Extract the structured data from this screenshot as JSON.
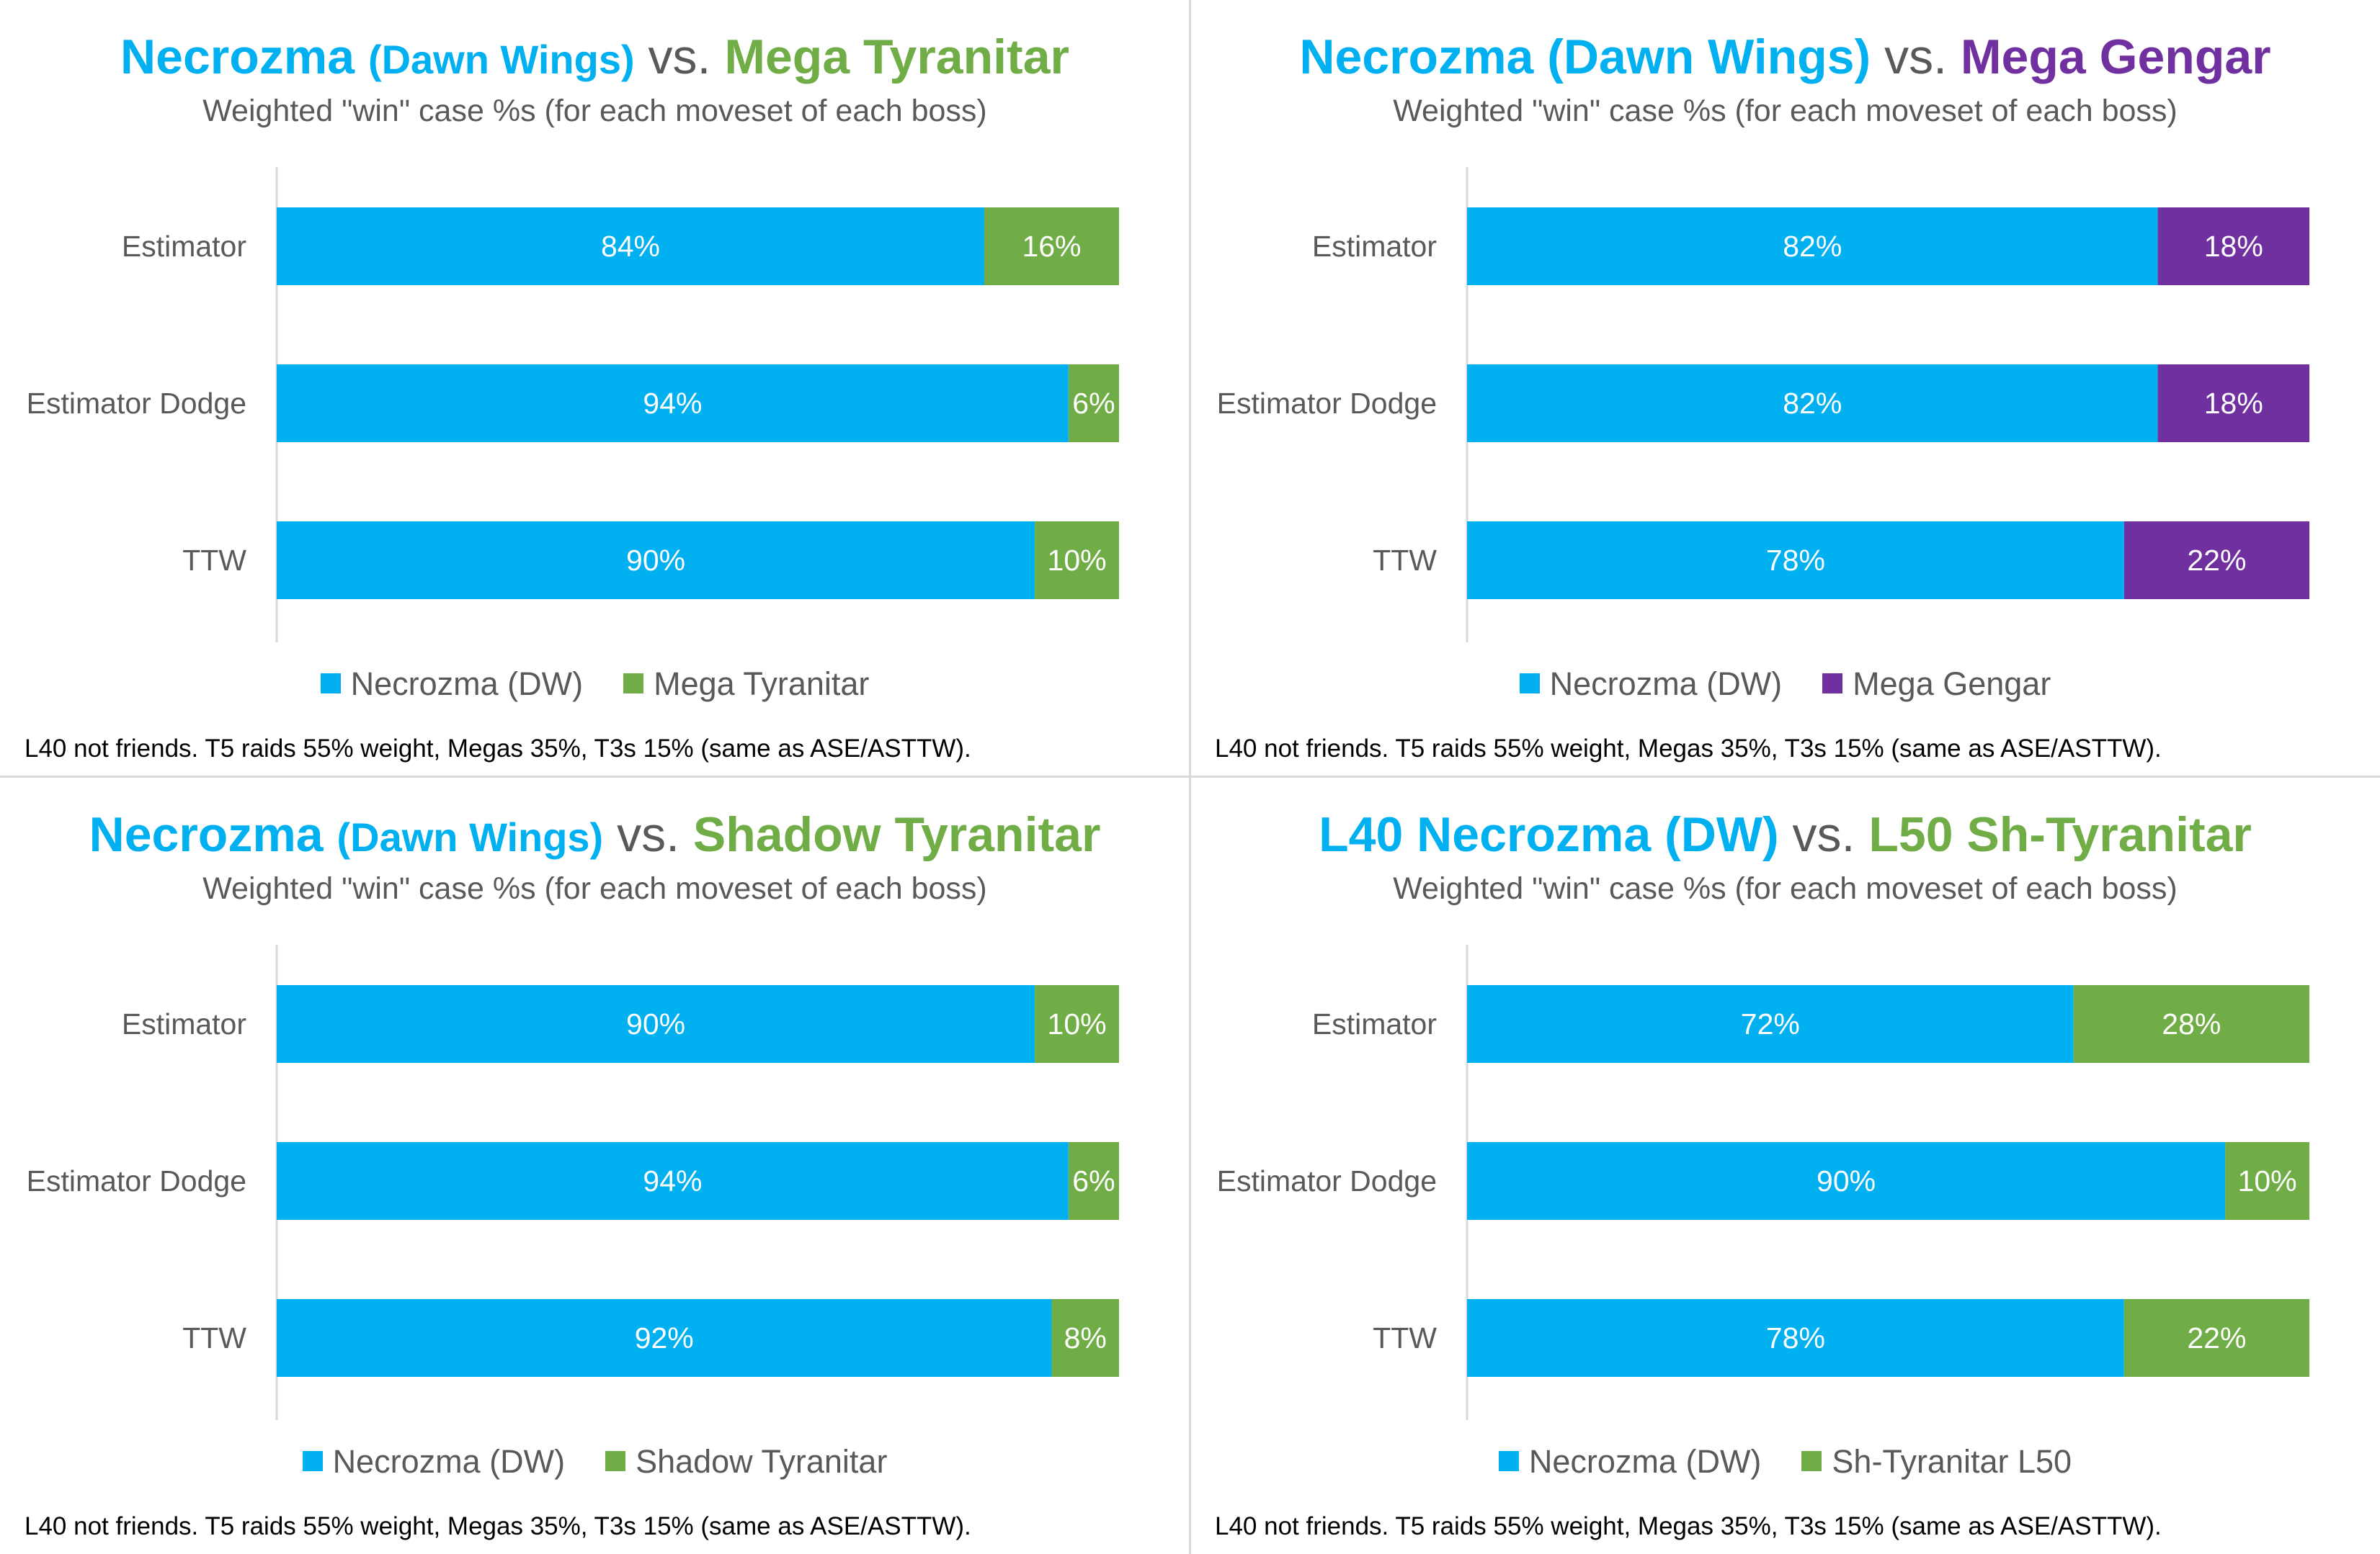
{
  "colors": {
    "necrozma": "#00B0F0",
    "tyranitar": "#70AD47",
    "gengar": "#7030A0",
    "text": "#595959"
  },
  "chart_data": [
    {
      "type": "bar",
      "stacked": true,
      "orientation": "horizontal",
      "title_parts": [
        {
          "text": "Necrozma ",
          "color": "#00B0F0",
          "size": "large"
        },
        {
          "text": "(Dawn Wings)",
          "color": "#00B0F0",
          "size": "small"
        },
        {
          "text": " vs. ",
          "color": "#595959",
          "size": "vs"
        },
        {
          "text": "Mega Tyranitar",
          "color": "#70AD47",
          "size": "large"
        }
      ],
      "subtitle": "Weighted \"win\" case %s (for each moveset of each boss)",
      "categories": [
        "Estimator",
        "Estimator Dodge",
        "TTW"
      ],
      "series": [
        {
          "name": "Necrozma (DW)",
          "color": "#00B0F0",
          "values": [
            84,
            94,
            90
          ],
          "labels": [
            "84%",
            "94%",
            "90%"
          ]
        },
        {
          "name": "Mega Tyranitar",
          "color": "#70AD47",
          "values": [
            16,
            6,
            10
          ],
          "labels": [
            "16%",
            "6%",
            "10%"
          ]
        }
      ],
      "xlim": [
        0,
        100
      ],
      "legend_position": "bottom",
      "footnote": "L40 not friends. T5 raids 55% weight, Megas 35%, T3s 15% (same as ASE/ASTTW)."
    },
    {
      "type": "bar",
      "stacked": true,
      "orientation": "horizontal",
      "title_parts": [
        {
          "text": "Necrozma (Dawn Wings)",
          "color": "#00B0F0",
          "size": "large"
        },
        {
          "text": " vs. ",
          "color": "#595959",
          "size": "vs"
        },
        {
          "text": "Mega Gengar",
          "color": "#7030A0",
          "size": "large"
        }
      ],
      "subtitle": "Weighted \"win\" case %s (for each moveset of each boss)",
      "categories": [
        "Estimator",
        "Estimator Dodge",
        "TTW"
      ],
      "series": [
        {
          "name": "Necrozma (DW)",
          "color": "#00B0F0",
          "values": [
            82,
            82,
            78
          ],
          "labels": [
            "82%",
            "82%",
            "78%"
          ]
        },
        {
          "name": "Mega Gengar",
          "color": "#7030A0",
          "values": [
            18,
            18,
            22
          ],
          "labels": [
            "18%",
            "18%",
            "22%"
          ]
        }
      ],
      "xlim": [
        0,
        100
      ],
      "legend_position": "bottom",
      "footnote": "L40 not friends. T5 raids 55% weight, Megas 35%, T3s 15% (same as ASE/ASTTW)."
    },
    {
      "type": "bar",
      "stacked": true,
      "orientation": "horizontal",
      "title_parts": [
        {
          "text": "Necrozma ",
          "color": "#00B0F0",
          "size": "large"
        },
        {
          "text": "(Dawn Wings)",
          "color": "#00B0F0",
          "size": "small"
        },
        {
          "text": " vs. ",
          "color": "#595959",
          "size": "vs"
        },
        {
          "text": "Shadow Tyranitar",
          "color": "#70AD47",
          "size": "large"
        }
      ],
      "subtitle": "Weighted \"win\" case %s (for each moveset of each boss)",
      "categories": [
        "Estimator",
        "Estimator Dodge",
        "TTW"
      ],
      "series": [
        {
          "name": "Necrozma (DW)",
          "color": "#00B0F0",
          "values": [
            90,
            94,
            92
          ],
          "labels": [
            "90%",
            "94%",
            "92%"
          ]
        },
        {
          "name": "Shadow Tyranitar",
          "color": "#70AD47",
          "values": [
            10,
            6,
            8
          ],
          "labels": [
            "10%",
            "6%",
            "8%"
          ]
        }
      ],
      "xlim": [
        0,
        100
      ],
      "legend_position": "bottom",
      "footnote": "L40 not friends. T5 raids 55% weight, Megas 35%, T3s 15% (same as ASE/ASTTW)."
    },
    {
      "type": "bar",
      "stacked": true,
      "orientation": "horizontal",
      "title_parts": [
        {
          "text": "L40 Necrozma (DW)",
          "color": "#00B0F0",
          "size": "large"
        },
        {
          "text": " vs. ",
          "color": "#595959",
          "size": "vs"
        },
        {
          "text": "L50 Sh-Tyranitar",
          "color": "#70AD47",
          "size": "large"
        }
      ],
      "subtitle": "Weighted \"win\" case %s (for each moveset of each boss)",
      "categories": [
        "Estimator",
        "Estimator Dodge",
        "TTW"
      ],
      "series": [
        {
          "name": "Necrozma (DW)",
          "color": "#00B0F0",
          "values": [
            72,
            90,
            78
          ],
          "labels": [
            "72%",
            "90%",
            "78%"
          ]
        },
        {
          "name": "Sh-Tyranitar L50",
          "color": "#70AD47",
          "values": [
            28,
            10,
            22
          ],
          "labels": [
            "28%",
            "10%",
            "22%"
          ]
        }
      ],
      "xlim": [
        0,
        100
      ],
      "legend_position": "bottom",
      "footnote": "L40 not friends. T5 raids 55% weight, Megas 35%, T3s 15% (same as ASE/ASTTW)."
    }
  ]
}
